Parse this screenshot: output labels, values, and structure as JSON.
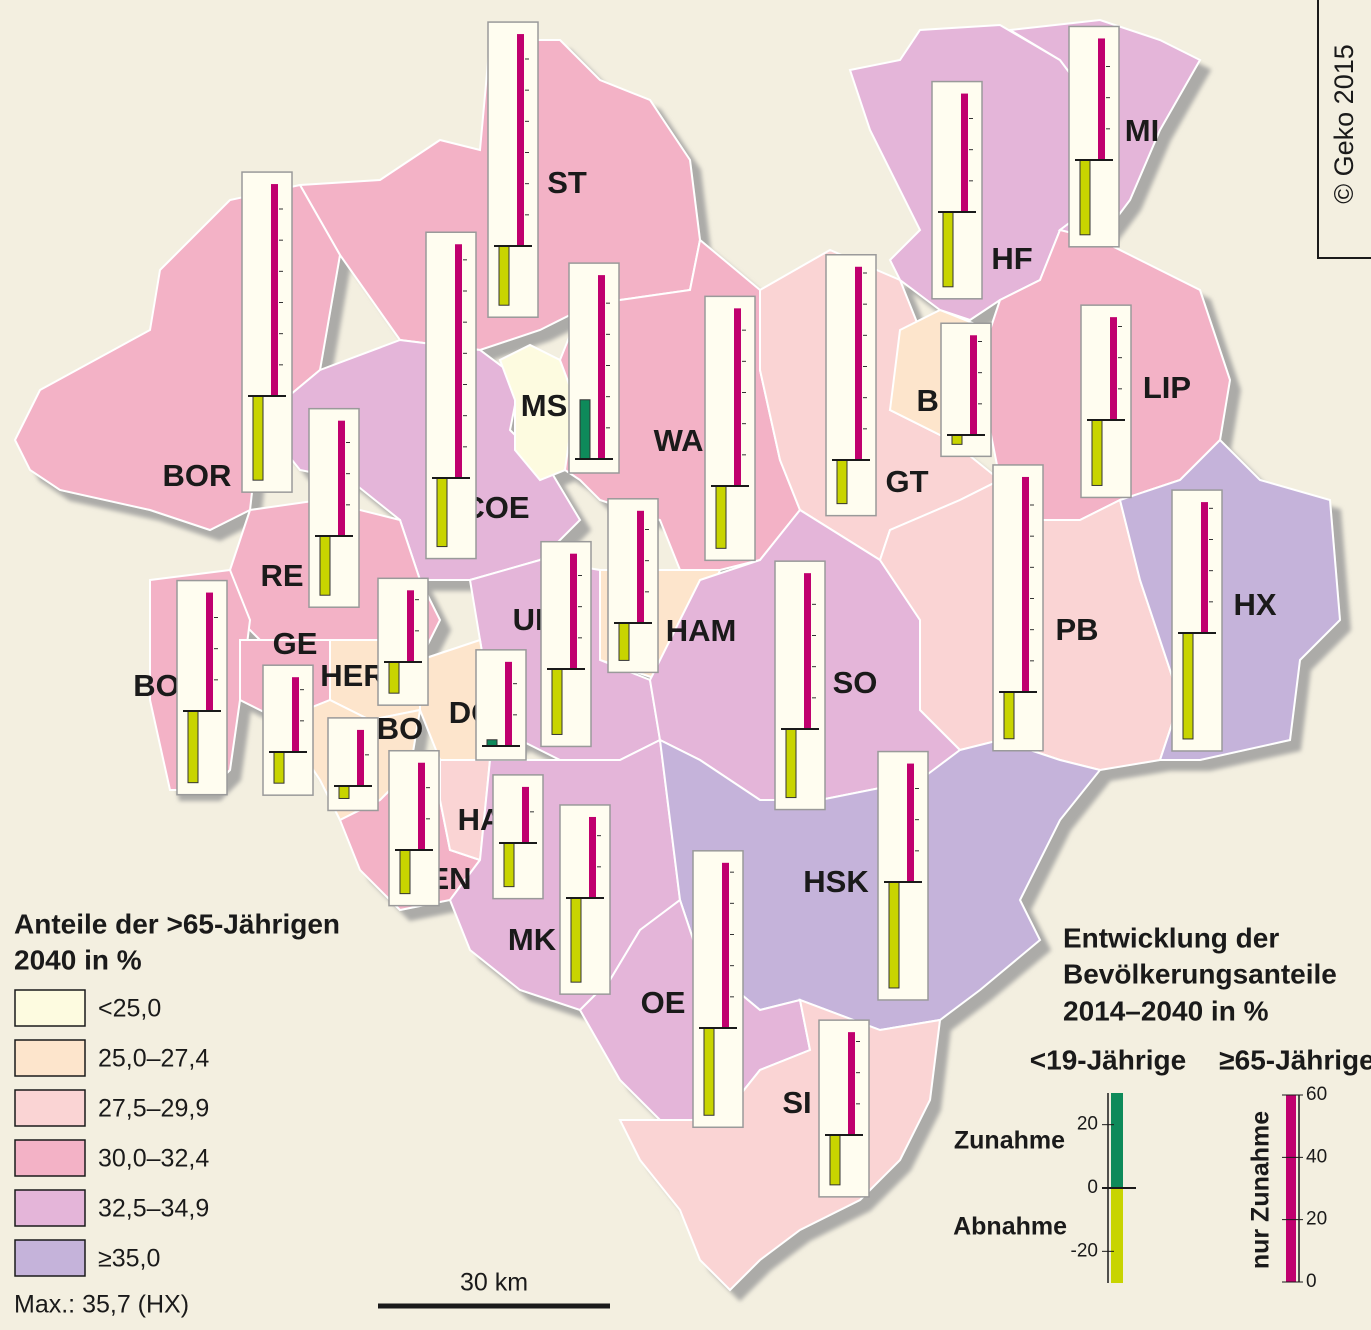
{
  "districts": [
    {
      "name": "ST",
      "color": "#f3b2c6",
      "young": -19,
      "old": 68
    },
    {
      "name": "BOR",
      "color": "#f3b2c6",
      "young": -27,
      "old": 68
    },
    {
      "name": "COE",
      "color": "#e4b5d9",
      "young": -22,
      "old": 75
    },
    {
      "name": "MS",
      "color": "#fdfbe0",
      "young": 19,
      "old": 59
    },
    {
      "name": "RE",
      "color": "#f3b2c6",
      "young": -19,
      "old": 37
    },
    {
      "name": "WAF",
      "color": "#f3b2c6",
      "young": -20,
      "old": 57
    },
    {
      "name": "GT",
      "color": "#fad4d4",
      "young": -14,
      "old": 62
    },
    {
      "name": "BI",
      "color": "#fde5cc",
      "young": -3,
      "old": 32
    },
    {
      "name": "HF",
      "color": "#e4b5d9",
      "young": -24,
      "old": 38
    },
    {
      "name": "MI",
      "color": "#e4b5d9",
      "young": -24,
      "old": 39
    },
    {
      "name": "LIP",
      "color": "#f3b2c6",
      "young": -21,
      "old": 33
    },
    {
      "name": "HAM",
      "color": "#fde5cc",
      "young": -12,
      "old": 36
    },
    {
      "name": "UN",
      "color": "#e4b5d9",
      "young": -21,
      "old": 37
    },
    {
      "name": "BOT",
      "color": "#f3b2c6",
      "young": -23,
      "old": 38
    },
    {
      "name": "GE",
      "color": "#f3b2c6",
      "young": -10,
      "old": 24
    },
    {
      "name": "HER",
      "color": "#fde5cc",
      "young": -10,
      "old": 23
    },
    {
      "name": "BO",
      "color": "#fde5cc",
      "young": -4,
      "old": 18
    },
    {
      "name": "DO",
      "color": "#fde5cc",
      "young": 2,
      "old": 27
    },
    {
      "name": "EN",
      "color": "#f3b2c6",
      "young": -14,
      "old": 28
    },
    {
      "name": "HA",
      "color": "#fad4d4",
      "young": -14,
      "old": 18
    },
    {
      "name": "MK",
      "color": "#e4b5d9",
      "young": -27,
      "old": 26
    },
    {
      "name": "SO",
      "color": "#e4b5d9",
      "young": -22,
      "old": 50
    },
    {
      "name": "PB",
      "color": "#fad4d4",
      "young": -15,
      "old": 69
    },
    {
      "name": "HX",
      "color": "#c5b3da",
      "young": -34,
      "old": 42
    },
    {
      "name": "HSK",
      "color": "#c5b3da",
      "young": -34,
      "old": 38
    },
    {
      "name": "OE",
      "color": "#e4b5d9",
      "young": -28,
      "old": 53
    },
    {
      "name": "SI",
      "color": "#fad4d4",
      "young": -16,
      "old": 33
    }
  ],
  "legend_left": {
    "title": [
      "Anteile der >65-Jährigen",
      "2040 in %"
    ],
    "classes": [
      {
        "label": "<25,0",
        "color": "#fdfbe0"
      },
      {
        "label": "25,0–27,4",
        "color": "#fde5cc"
      },
      {
        "label": "27,5–29,9",
        "color": "#fad4d4"
      },
      {
        "label": "30,0–32,4",
        "color": "#f3b2c6"
      },
      {
        "label": "32,5–34,9",
        "color": "#e4b5d9"
      },
      {
        "label": "≥35,0",
        "color": "#c5b3da"
      }
    ],
    "max_note": "Max.: 35,7 (HX)"
  },
  "legend_right": {
    "title": [
      "Entwicklung der",
      "Bevölkerungsanteile",
      "2014–2040 in %"
    ],
    "young_label": "<19-Jährige",
    "old_label": "≥65-Jährige",
    "increase": "Zunahme",
    "decrease": "Abnahme",
    "old_note": "nur Zunahme",
    "young_axis": {
      "lim": [
        -30,
        30
      ],
      "ticks": [
        20,
        0,
        -20
      ],
      "increase_color": "#0e8a5a",
      "decrease_color": "#c8d400"
    },
    "old_axis": {
      "lim": [
        0,
        60
      ],
      "ticks": [
        0,
        20,
        40,
        60
      ],
      "color": "#c0006e"
    }
  },
  "scale_bar": "30 km",
  "copyright": "© Geko 2015"
}
